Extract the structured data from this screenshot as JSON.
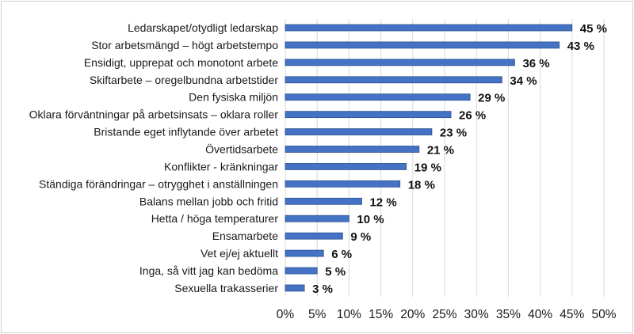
{
  "chart_data": {
    "type": "bar",
    "orientation": "horizontal",
    "categories": [
      "Ledarskapet/otydligt ledarskap",
      "Stor arbetsmängd – högt arbetstempo",
      "Ensidigt, upprepat och monotont arbete",
      "Skiftarbete – oregelbundna arbetstider",
      "Den fysiska miljön",
      "Oklara förväntningar på arbetsinsats – oklara roller",
      "Bristande eget inflytande över arbetet",
      "Övertidsarbete",
      "Konflikter - kränkningar",
      "Ständiga förändringar – otrygghet i anställningen",
      "Balans mellan jobb och fritid",
      "Hetta / höga temperaturer",
      "Ensamarbete",
      "Vet ej/ej aktuellt",
      "Inga, så vitt jag kan bedöma",
      "Sexuella trakasserier"
    ],
    "values": [
      45,
      43,
      36,
      34,
      29,
      26,
      23,
      21,
      19,
      18,
      12,
      10,
      9,
      6,
      5,
      3
    ],
    "data_labels": [
      "45 %",
      "43 %",
      "36 %",
      "34 %",
      "29 %",
      "26 %",
      "23 %",
      "21 %",
      "19 %",
      "18 %",
      "12 %",
      "10 %",
      "9 %",
      "6 %",
      "5 %",
      "3 %"
    ],
    "xlim": [
      0,
      50
    ],
    "x_ticks": [
      "0%",
      "5%",
      "10%",
      "15%",
      "20%",
      "25%",
      "30%",
      "35%",
      "40%",
      "45%",
      "50%"
    ],
    "grid": "vertical",
    "bar_color": "#4472c4",
    "bar_edge_color": "#2f528f",
    "grid_color": "#d9d9d9",
    "title": "",
    "xlabel": "",
    "ylabel": ""
  }
}
